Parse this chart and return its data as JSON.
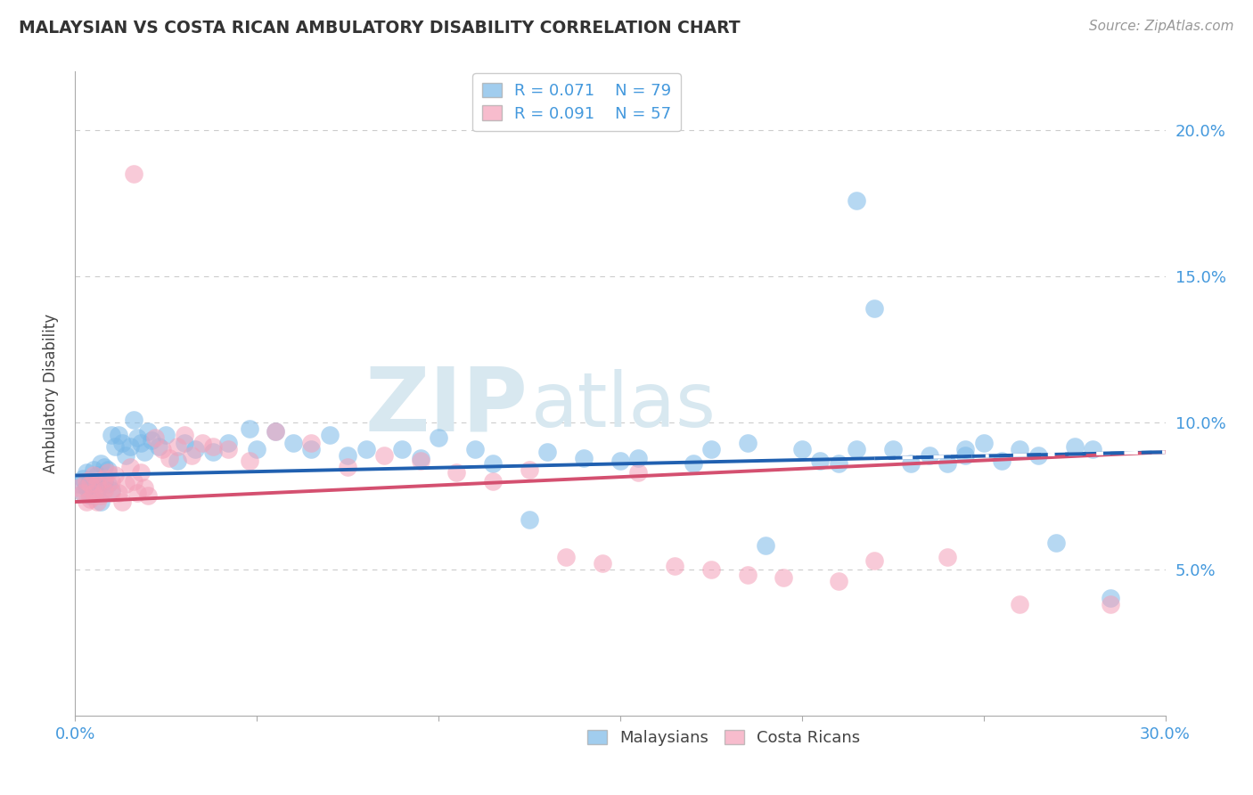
{
  "title": "MALAYSIAN VS COSTA RICAN AMBULATORY DISABILITY CORRELATION CHART",
  "source": "Source: ZipAtlas.com",
  "ylabel": "Ambulatory Disability",
  "xlim": [
    0.0,
    0.3
  ],
  "ylim": [
    0.0,
    0.22
  ],
  "legend_r_blue": "R = 0.071",
  "legend_n_blue": "N = 79",
  "legend_r_pink": "R = 0.091",
  "legend_n_pink": "N = 57",
  "blue_color": "#7ab8e8",
  "pink_color": "#f4a0b8",
  "blue_line_color": "#2060b0",
  "pink_line_color": "#d45070",
  "grid_color": "#cccccc",
  "title_color": "#333333",
  "axis_label_color": "#444444",
  "tick_color": "#4499dd",
  "blue_trend_start": 0.082,
  "blue_trend_end": 0.09,
  "pink_trend_start": 0.073,
  "pink_trend_end": 0.09,
  "malaysians_x": [
    0.001,
    0.002,
    0.002,
    0.003,
    0.003,
    0.004,
    0.004,
    0.005,
    0.005,
    0.006,
    0.006,
    0.007,
    0.007,
    0.008,
    0.008,
    0.009,
    0.009,
    0.01,
    0.01,
    0.011,
    0.012,
    0.013,
    0.014,
    0.015,
    0.016,
    0.017,
    0.018,
    0.019,
    0.02,
    0.021,
    0.023,
    0.025,
    0.028,
    0.03,
    0.033,
    0.038,
    0.042,
    0.048,
    0.055,
    0.065,
    0.075,
    0.09,
    0.1,
    0.11,
    0.125,
    0.14,
    0.155,
    0.17,
    0.185,
    0.2,
    0.21,
    0.215,
    0.22,
    0.225,
    0.23,
    0.235,
    0.24,
    0.245,
    0.25,
    0.255,
    0.26,
    0.265,
    0.27,
    0.275,
    0.28,
    0.05,
    0.06,
    0.07,
    0.08,
    0.095,
    0.115,
    0.13,
    0.15,
    0.175,
    0.19,
    0.205,
    0.215,
    0.245,
    0.285
  ],
  "malaysians_y": [
    0.079,
    0.081,
    0.076,
    0.083,
    0.078,
    0.08,
    0.075,
    0.084,
    0.079,
    0.077,
    0.082,
    0.086,
    0.073,
    0.08,
    0.085,
    0.079,
    0.084,
    0.077,
    0.096,
    0.092,
    0.096,
    0.093,
    0.089,
    0.092,
    0.101,
    0.095,
    0.093,
    0.09,
    0.097,
    0.094,
    0.092,
    0.096,
    0.087,
    0.093,
    0.091,
    0.09,
    0.093,
    0.098,
    0.097,
    0.091,
    0.089,
    0.091,
    0.095,
    0.091,
    0.067,
    0.088,
    0.088,
    0.086,
    0.093,
    0.091,
    0.086,
    0.176,
    0.139,
    0.091,
    0.086,
    0.089,
    0.086,
    0.089,
    0.093,
    0.087,
    0.091,
    0.089,
    0.059,
    0.092,
    0.091,
    0.091,
    0.093,
    0.096,
    0.091,
    0.088,
    0.086,
    0.09,
    0.087,
    0.091,
    0.058,
    0.087,
    0.091,
    0.091,
    0.04
  ],
  "costa_ricans_x": [
    0.001,
    0.002,
    0.003,
    0.003,
    0.004,
    0.004,
    0.005,
    0.005,
    0.006,
    0.006,
    0.007,
    0.008,
    0.008,
    0.009,
    0.01,
    0.01,
    0.011,
    0.012,
    0.013,
    0.014,
    0.015,
    0.016,
    0.017,
    0.018,
    0.019,
    0.02,
    0.022,
    0.024,
    0.026,
    0.028,
    0.03,
    0.032,
    0.035,
    0.038,
    0.042,
    0.048,
    0.055,
    0.065,
    0.075,
    0.085,
    0.095,
    0.105,
    0.115,
    0.125,
    0.135,
    0.145,
    0.155,
    0.165,
    0.175,
    0.185,
    0.195,
    0.21,
    0.22,
    0.24,
    0.26,
    0.285,
    0.016
  ],
  "costa_ricans_y": [
    0.078,
    0.076,
    0.073,
    0.08,
    0.074,
    0.079,
    0.082,
    0.076,
    0.073,
    0.079,
    0.075,
    0.081,
    0.077,
    0.083,
    0.076,
    0.08,
    0.082,
    0.076,
    0.073,
    0.079,
    0.085,
    0.08,
    0.076,
    0.083,
    0.078,
    0.075,
    0.095,
    0.091,
    0.088,
    0.092,
    0.096,
    0.089,
    0.093,
    0.092,
    0.091,
    0.087,
    0.097,
    0.093,
    0.085,
    0.089,
    0.087,
    0.083,
    0.08,
    0.084,
    0.054,
    0.052,
    0.083,
    0.051,
    0.05,
    0.048,
    0.047,
    0.046,
    0.053,
    0.054,
    0.038,
    0.038,
    0.185
  ]
}
